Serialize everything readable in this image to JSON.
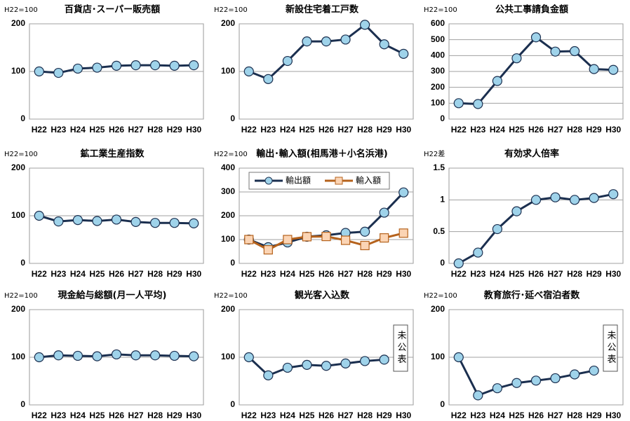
{
  "chart_data": [
    {
      "type": "line",
      "title": "百貨店･スーパー販売額",
      "unit": "H22=100",
      "categories": [
        "H22",
        "H23",
        "H24",
        "H25",
        "H26",
        "H27",
        "H28",
        "H29",
        "H30"
      ],
      "series": [
        {
          "color": "#1b2f4f",
          "marker_color": "#9fd3ea",
          "marker": "circle",
          "values": [
            100,
            97,
            106,
            108,
            112,
            113,
            113,
            112,
            113
          ]
        }
      ],
      "ylim": [
        0,
        200
      ],
      "yticks": [
        0,
        100,
        200
      ],
      "grid": true
    },
    {
      "type": "line",
      "title": "新設住宅着工戸数",
      "unit": "H22=100",
      "categories": [
        "H22",
        "H23",
        "H24",
        "H25",
        "H26",
        "H27",
        "H28",
        "H29",
        "H30"
      ],
      "series": [
        {
          "color": "#1b2f4f",
          "marker_color": "#9fd3ea",
          "marker": "circle",
          "values": [
            100,
            84,
            122,
            163,
            163,
            167,
            198,
            157,
            137
          ]
        }
      ],
      "ylim": [
        0,
        200
      ],
      "yticks": [
        0,
        100,
        200
      ],
      "grid": true
    },
    {
      "type": "line",
      "title": "公共工事請負金額",
      "unit": "H22=100",
      "categories": [
        "H22",
        "H23",
        "H24",
        "H25",
        "H26",
        "H27",
        "H28",
        "H29",
        "H30"
      ],
      "series": [
        {
          "color": "#1b2f4f",
          "marker_color": "#9fd3ea",
          "marker": "circle",
          "values": [
            100,
            95,
            240,
            383,
            515,
            425,
            428,
            315,
            310
          ]
        }
      ],
      "ylim": [
        0,
        600
      ],
      "yticks": [
        0,
        100,
        200,
        300,
        400,
        500,
        600
      ],
      "grid": true
    },
    {
      "type": "line",
      "title": "鉱工業生産指数",
      "unit": "H22=100",
      "categories": [
        "H22",
        "H23",
        "H24",
        "H25",
        "H26",
        "H27",
        "H28",
        "H29",
        "H30"
      ],
      "series": [
        {
          "color": "#1b2f4f",
          "marker_color": "#9fd3ea",
          "marker": "circle",
          "values": [
            100,
            88,
            91,
            89,
            92,
            87,
            85,
            85,
            84
          ]
        }
      ],
      "ylim": [
        0,
        200
      ],
      "yticks": [
        0,
        100,
        200
      ],
      "grid": true
    },
    {
      "type": "line",
      "title": "輸出･輸入額(相馬港＋小名浜港)",
      "unit": "H22=100",
      "categories": [
        "H22",
        "H23",
        "H24",
        "H25",
        "H26",
        "H27",
        "H28",
        "H29",
        "H30"
      ],
      "series": [
        {
          "name": "輸出額",
          "color": "#1b2f4f",
          "marker_color": "#9fd3ea",
          "marker": "circle",
          "values": [
            100,
            68,
            88,
            112,
            118,
            128,
            133,
            213,
            298
          ]
        },
        {
          "name": "輸入額",
          "color": "#b5621c",
          "marker_color": "#fbd4b4",
          "marker": "square",
          "values": [
            100,
            57,
            100,
            112,
            113,
            97,
            75,
            107,
            127
          ]
        }
      ],
      "ylim": [
        0,
        400
      ],
      "yticks": [
        0,
        100,
        200,
        300,
        400
      ],
      "grid": true,
      "legend": "top"
    },
    {
      "type": "line",
      "title": "有効求人倍率",
      "unit": "H22差",
      "categories": [
        "H22",
        "H23",
        "H24",
        "H25",
        "H26",
        "H27",
        "H28",
        "H29",
        "H30"
      ],
      "series": [
        {
          "color": "#1b2f4f",
          "marker_color": "#9fd3ea",
          "marker": "circle",
          "values": [
            0,
            0.17,
            0.54,
            0.82,
            1.0,
            1.04,
            1.0,
            1.03,
            1.09
          ]
        }
      ],
      "ylim": [
        0,
        1.5
      ],
      "yticks": [
        0,
        0.5,
        1,
        1.5
      ],
      "grid": true
    },
    {
      "type": "line",
      "title": "現金給与総額(月一人平均)",
      "unit": "H22=100",
      "categories": [
        "H22",
        "H23",
        "H24",
        "H25",
        "H26",
        "H27",
        "H28",
        "H29",
        "H30"
      ],
      "series": [
        {
          "color": "#1b2f4f",
          "marker_color": "#9fd3ea",
          "marker": "circle",
          "values": [
            100,
            104,
            103,
            102,
            106,
            104,
            104,
            103,
            102
          ]
        }
      ],
      "ylim": [
        0,
        200
      ],
      "yticks": [
        0,
        100,
        200
      ],
      "grid": true
    },
    {
      "type": "line",
      "title": "観光客入込数",
      "unit": "H22=100",
      "categories": [
        "H22",
        "H23",
        "H24",
        "H25",
        "H26",
        "H27",
        "H28",
        "H29",
        "H30"
      ],
      "series": [
        {
          "color": "#1b2f4f",
          "marker_color": "#9fd3ea",
          "marker": "circle",
          "values": [
            100,
            62,
            78,
            84,
            82,
            87,
            92,
            95,
            null
          ]
        }
      ],
      "ylim": [
        0,
        200
      ],
      "yticks": [
        0,
        100,
        200
      ],
      "grid": true,
      "annotation": "未公表"
    },
    {
      "type": "line",
      "title": "教育旅行･延べ宿泊者数",
      "unit": "H22=100",
      "categories": [
        "H22",
        "H23",
        "H24",
        "H25",
        "H26",
        "H27",
        "H28",
        "H29",
        "H30"
      ],
      "series": [
        {
          "color": "#1b2f4f",
          "marker_color": "#9fd3ea",
          "marker": "circle",
          "values": [
            100,
            20,
            35,
            46,
            51,
            56,
            64,
            72,
            null
          ]
        }
      ],
      "ylim": [
        0,
        200
      ],
      "yticks": [
        0,
        100,
        200
      ],
      "grid": true,
      "annotation": "未公表"
    }
  ]
}
